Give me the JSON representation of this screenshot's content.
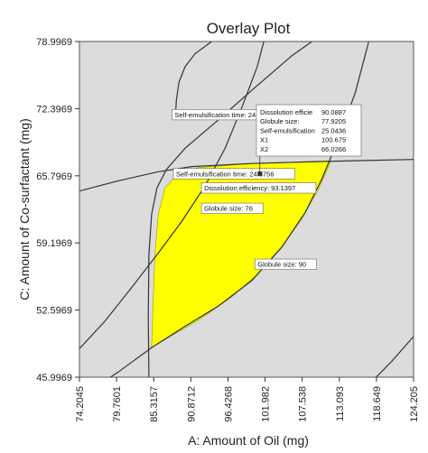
{
  "chart_data": {
    "type": "contour",
    "title": "Overlay Plot",
    "xlabel": "A: Amount of Oil (mg)",
    "ylabel": "C: Amount of Co-surfactant (mg)",
    "xlim": [
      74.2045,
      124.205
    ],
    "ylim": [
      45.9969,
      78.9969
    ],
    "x_ticks": [
      "74.2045",
      "79.7601",
      "85.3157",
      "90.8712",
      "96.4268",
      "101.982",
      "107.538",
      "113.093",
      "118.649",
      "124.205"
    ],
    "y_ticks": [
      "45.9969",
      "52.5969",
      "59.1969",
      "65.7969",
      "72.3969",
      "78.9969"
    ],
    "grid": false,
    "colors": {
      "background": "#dcdcdc",
      "region": "#ffff00",
      "contour": "#333333",
      "frame": "#555555"
    },
    "design_space": {
      "color": "#ffff00",
      "boundary": [
        [
          85.0,
          48.9
        ],
        [
          87.5,
          49.9
        ],
        [
          92.0,
          51.6
        ],
        [
          97.0,
          53.9
        ],
        [
          101.0,
          56.2
        ],
        [
          104.5,
          58.8
        ],
        [
          107.5,
          61.6
        ],
        [
          110.0,
          64.5
        ],
        [
          111.8,
          67.2
        ],
        [
          106.0,
          67.1
        ],
        [
          100.0,
          67.0
        ],
        [
          92.0,
          66.6
        ],
        [
          89.0,
          66.0
        ],
        [
          87.0,
          64.6
        ],
        [
          86.0,
          62.0
        ],
        [
          85.5,
          58.0
        ],
        [
          85.2,
          53.0
        ]
      ]
    },
    "contours": [
      {
        "label": "Self-emulsification time: 24.9756",
        "value": 24.9756,
        "points": [
          [
            74.2,
            64.3
          ],
          [
            80.0,
            65.3
          ],
          [
            86.0,
            66.2
          ],
          [
            91.0,
            66.7
          ],
          [
            100.0,
            67.0
          ],
          [
            110.0,
            67.2
          ],
          [
            124.2,
            67.4
          ]
        ]
      },
      {
        "label": "Self-emulsification time: 24.9756",
        "value": 24.9756,
        "points": [
          [
            94.0,
            79.0
          ],
          [
            91.5,
            77.8
          ],
          [
            90.0,
            76.5
          ],
          [
            89.1,
            75.0
          ],
          [
            88.7,
            73.2
          ],
          [
            88.6,
            72.0
          ]
        ]
      },
      {
        "label": "Dissolution efficiency: 93.1397",
        "value": 93.1397,
        "points": [
          [
            84.6,
            45.99
          ],
          [
            84.5,
            52.0
          ],
          [
            84.6,
            58.0
          ],
          [
            85.0,
            62.0
          ],
          [
            85.8,
            64.6
          ],
          [
            87.2,
            66.4
          ],
          [
            90.0,
            68.5
          ],
          [
            95.0,
            71.3
          ],
          [
            100.0,
            74.2
          ],
          [
            106.0,
            77.6
          ],
          [
            109.0,
            79.0
          ]
        ]
      },
      {
        "label": "Globule size: 76",
        "value": 76,
        "points": [
          [
            74.2,
            48.8
          ],
          [
            78.0,
            51.5
          ],
          [
            82.0,
            54.8
          ],
          [
            86.0,
            58.2
          ],
          [
            89.5,
            61.3
          ],
          [
            93.0,
            64.8
          ],
          [
            96.0,
            68.5
          ],
          [
            98.5,
            72.5
          ],
          [
            100.8,
            76.5
          ],
          [
            101.8,
            79.0
          ]
        ]
      },
      {
        "label": "Globule size: 90",
        "value": 90,
        "points": [
          [
            74.2,
            44.0
          ],
          [
            80.0,
            46.5
          ],
          [
            85.0,
            48.9
          ],
          [
            90.0,
            51.0
          ],
          [
            95.0,
            53.0
          ],
          [
            100.0,
            55.5
          ],
          [
            104.5,
            58.8
          ],
          [
            108.0,
            62.2
          ],
          [
            110.5,
            65.5
          ],
          [
            113.0,
            69.5
          ],
          [
            115.5,
            74.0
          ],
          [
            117.5,
            79.0
          ]
        ]
      },
      {
        "label": "",
        "value": null,
        "points": [
          [
            118.6,
            45.99
          ],
          [
            121.0,
            47.6
          ],
          [
            124.2,
            50.0
          ]
        ]
      }
    ],
    "annotations": [
      {
        "text": "Self-emulsification time: 24.9756",
        "at": [
          88.6,
          72.0
        ]
      },
      {
        "text": "Dissolution efficiency: 93.1397",
        "at": [
          93.0,
          64.8
        ]
      },
      {
        "text": "Self-emulsification time: 24.9756",
        "at": [
          88.8,
          66.2
        ]
      },
      {
        "text": "Globule size: 76",
        "at": [
          93.0,
          62.8
        ]
      },
      {
        "text": "Globule size: 90",
        "at": [
          101.0,
          57.3
        ]
      }
    ],
    "prediction_flag": {
      "anchor": [
        101.2,
        66.0
      ],
      "lines": [
        [
          "Dissolution efficie",
          "90.0887"
        ],
        [
          "Globule size:",
          "77.9205"
        ],
        [
          "Self-emulsification",
          "25.0436"
        ],
        [
          "X1",
          "100.675"
        ],
        [
          "X2",
          "66.0266"
        ]
      ]
    }
  }
}
